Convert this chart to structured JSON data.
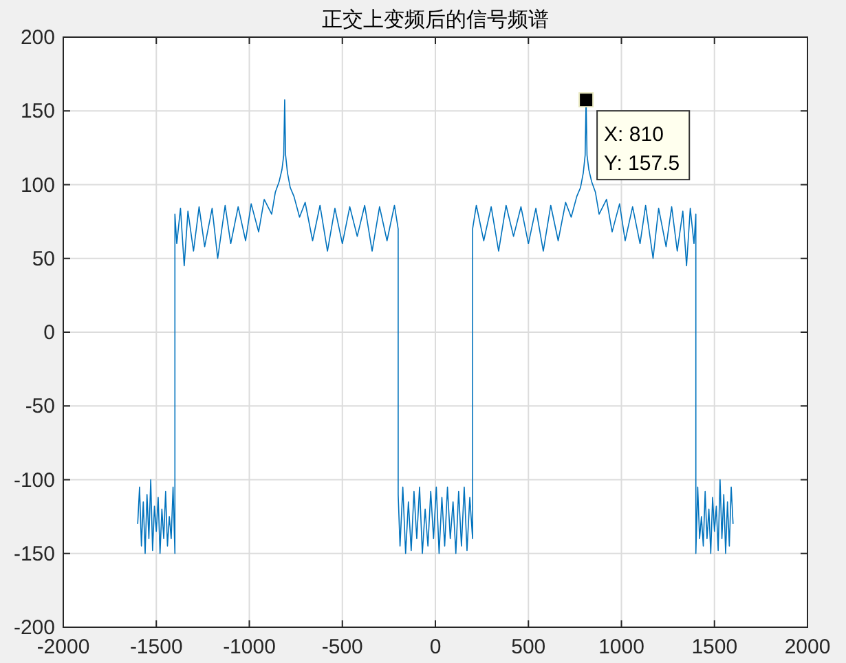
{
  "chart_data": {
    "type": "line",
    "title": "正交上变频后的信号频谱",
    "xlim": [
      -2000,
      2000
    ],
    "xticks": [
      -2000,
      -1500,
      -1000,
      -500,
      0,
      500,
      1000,
      1500,
      2000
    ],
    "ylim": [
      -200,
      200
    ],
    "yticks": [
      -200,
      -150,
      -100,
      -50,
      0,
      50,
      100,
      150,
      200
    ],
    "grid": true,
    "marker": "none",
    "line_style": "solid",
    "annotations": [
      {
        "text": "X: 810\nY: 157.5",
        "x": 810,
        "y": 157.5
      }
    ],
    "series": [
      {
        "color": "#0072bd",
        "x": [
          -1600,
          -1590,
          -1580,
          -1570,
          -1560,
          -1550,
          -1540,
          -1530,
          -1520,
          -1510,
          -1500,
          -1490,
          -1480,
          -1470,
          -1460,
          -1450,
          -1440,
          -1430,
          -1420,
          -1410,
          -1400,
          -1400,
          -1390,
          -1370,
          -1350,
          -1330,
          -1300,
          -1270,
          -1240,
          -1200,
          -1170,
          -1130,
          -1100,
          -1060,
          -1020,
          -990,
          -950,
          -920,
          -880,
          -860,
          -840,
          -825,
          -815,
          -810,
          -805,
          -795,
          -780,
          -760,
          -730,
          -700,
          -660,
          -620,
          -580,
          -540,
          -500,
          -460,
          -420,
          -380,
          -340,
          -300,
          -260,
          -220,
          -200,
          -200,
          -190,
          -175,
          -160,
          -145,
          -130,
          -115,
          -100,
          -85,
          -70,
          -55,
          -40,
          -25,
          -10,
          5,
          20,
          35,
          50,
          65,
          80,
          95,
          110,
          125,
          140,
          155,
          170,
          185,
          200,
          200,
          220,
          260,
          300,
          340,
          380,
          420,
          460,
          500,
          540,
          580,
          620,
          660,
          700,
          730,
          760,
          780,
          795,
          805,
          810,
          815,
          825,
          840,
          860,
          880,
          920,
          950,
          990,
          1020,
          1060,
          1100,
          1130,
          1170,
          1200,
          1240,
          1270,
          1300,
          1330,
          1350,
          1370,
          1390,
          1400,
          1400,
          1410,
          1420,
          1430,
          1440,
          1450,
          1460,
          1470,
          1480,
          1490,
          1500,
          1510,
          1520,
          1530,
          1540,
          1550,
          1560,
          1570,
          1580,
          1590,
          1600
        ],
        "values": [
          -130,
          -105,
          -145,
          -115,
          -150,
          -110,
          -140,
          -100,
          -148,
          -118,
          -135,
          -112,
          -150,
          -120,
          -140,
          -108,
          -145,
          -125,
          -140,
          -105,
          -150,
          80,
          60,
          84,
          45,
          82,
          55,
          85,
          58,
          84,
          50,
          86,
          60,
          85,
          62,
          87,
          68,
          90,
          80,
          95,
          102,
          110,
          120,
          157.5,
          120,
          108,
          98,
          92,
          78,
          88,
          62,
          86,
          55,
          84,
          60,
          85,
          65,
          86,
          55,
          85,
          62,
          86,
          70,
          -110,
          -145,
          -105,
          -150,
          -115,
          -148,
          -108,
          -140,
          -105,
          -150,
          -120,
          -145,
          -108,
          -140,
          -105,
          -150,
          -112,
          -145,
          -105,
          -140,
          -115,
          -150,
          -108,
          -145,
          -105,
          -148,
          -112,
          -140,
          70,
          86,
          62,
          85,
          55,
          86,
          65,
          85,
          60,
          84,
          55,
          86,
          62,
          88,
          78,
          92,
          98,
          108,
          120,
          157.5,
          120,
          110,
          102,
          95,
          80,
          90,
          68,
          87,
          62,
          85,
          60,
          86,
          50,
          84,
          58,
          85,
          55,
          82,
          45,
          84,
          60,
          80,
          -150,
          -105,
          -140,
          -125,
          -145,
          -108,
          -140,
          -120,
          -150,
          -112,
          -135,
          -118,
          -148,
          -100,
          -140,
          -110,
          -150,
          -115,
          -145,
          -105,
          -130
        ]
      }
    ]
  }
}
